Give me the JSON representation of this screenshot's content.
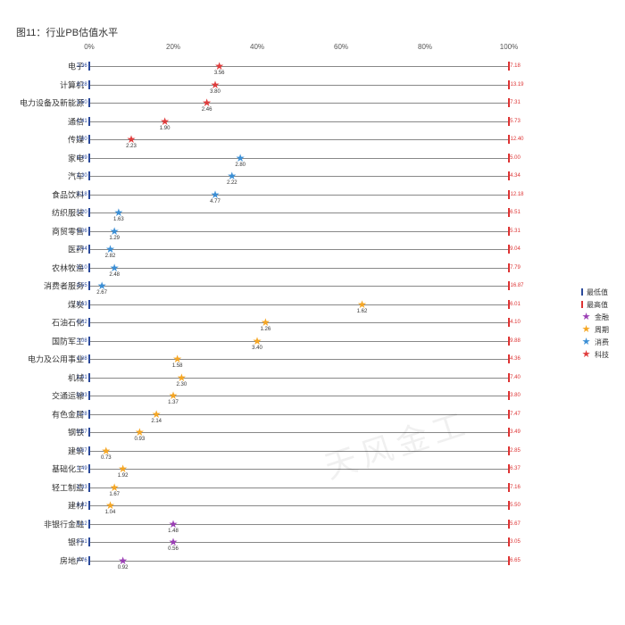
{
  "title": "图11：行业PB估值水平",
  "watermark": "天风金工",
  "xaxis": {
    "ticks": [
      0,
      20,
      40,
      60,
      80,
      100
    ],
    "suffix": "%"
  },
  "colors": {
    "min_tick": "#2b4a9b",
    "max_tick": "#d33",
    "grid": "#888888",
    "categories": {
      "金融": "#9b3fb5",
      "周期": "#f5a623",
      "消费": "#3b8fd6",
      "科技": "#e03c3c"
    }
  },
  "legend": [
    {
      "type": "tick",
      "color": "#2b4a9b",
      "label": "最低值"
    },
    {
      "type": "tick",
      "color": "#d33",
      "label": "最高值"
    },
    {
      "type": "star",
      "cat": "金融",
      "label": "金融"
    },
    {
      "type": "star",
      "cat": "周期",
      "label": "周期"
    },
    {
      "type": "star",
      "cat": "消费",
      "label": "消费"
    },
    {
      "type": "star",
      "cat": "科技",
      "label": "科技"
    }
  ],
  "rows": [
    {
      "label": "电子",
      "min": 2.36,
      "max": 7.18,
      "cat": "科技",
      "pct": 31,
      "val": 3.56
    },
    {
      "label": "计算机",
      "min": 2.28,
      "max": 13.19,
      "cat": "科技",
      "pct": 30,
      "val": 3.8
    },
    {
      "label": "电力设备及新能源",
      "min": 1.5,
      "max": 7.31,
      "cat": "科技",
      "pct": 28,
      "val": 2.46
    },
    {
      "label": "通信",
      "min": 1.41,
      "max": 5.73,
      "cat": "科技",
      "pct": 18,
      "val": 1.9
    },
    {
      "label": "传媒",
      "min": 1.6,
      "max": 12.4,
      "cat": "科技",
      "pct": 10,
      "val": 2.23
    },
    {
      "label": "家电",
      "min": 1.49,
      "max": 5.0,
      "cat": "消费",
      "pct": 36,
      "val": 2.8
    },
    {
      "label": "汽车",
      "min": 1.3,
      "max": 4.34,
      "cat": "消费",
      "pct": 34,
      "val": 2.22
    },
    {
      "label": "食品饮料",
      "min": 3.18,
      "max": 12.18,
      "cat": "消费",
      "pct": 30,
      "val": 4.77
    },
    {
      "label": "纺织服装",
      "min": 1.2,
      "max": 6.51,
      "cat": "消费",
      "pct": 7,
      "val": 1.63
    },
    {
      "label": "商贸零售",
      "min": 1.06,
      "max": 5.31,
      "cat": "消费",
      "pct": 6,
      "val": 1.29
    },
    {
      "label": "医药",
      "min": 2.44,
      "max": 9.04,
      "cat": "消费",
      "pct": 5,
      "val": 2.82
    },
    {
      "label": "农林牧渔",
      "min": 2.1,
      "max": 7.79,
      "cat": "消费",
      "pct": 6,
      "val": 2.48
    },
    {
      "label": "消费者服务",
      "min": 2.55,
      "max": 16.87,
      "cat": "消费",
      "pct": 3,
      "val": 2.67
    },
    {
      "label": "煤炭",
      "min": 0.63,
      "max": 6.01,
      "cat": "周期",
      "pct": 65,
      "val": 1.62
    },
    {
      "label": "石油石化",
      "min": 0.82,
      "max": 4.1,
      "cat": "周期",
      "pct": 42,
      "val": 1.26
    },
    {
      "label": "国防军工",
      "min": 2.08,
      "max": 9.88,
      "cat": "周期",
      "pct": 40,
      "val": 3.4
    },
    {
      "label": "电力及公用事业",
      "min": 1.08,
      "max": 4.36,
      "cat": "周期",
      "pct": 21,
      "val": 1.58
    },
    {
      "label": "机械",
      "min": 1.41,
      "max": 7.4,
      "cat": "周期",
      "pct": 22,
      "val": 2.3
    },
    {
      "label": "交通运输",
      "min": 0.93,
      "max": 3.8,
      "cat": "周期",
      "pct": 20,
      "val": 1.37
    },
    {
      "label": "有色金属",
      "min": 1.28,
      "max": 7.47,
      "cat": "周期",
      "pct": 16,
      "val": 2.14
    },
    {
      "label": "钢铁",
      "min": 0.57,
      "max": 3.49,
      "cat": "周期",
      "pct": 12,
      "val": 0.93
    },
    {
      "label": "建筑",
      "min": 0.67,
      "max": 2.85,
      "cat": "周期",
      "pct": 4,
      "val": 0.73
    },
    {
      "label": "基础化工",
      "min": 1.49,
      "max": 6.37,
      "cat": "周期",
      "pct": 8,
      "val": 1.92
    },
    {
      "label": "轻工制造",
      "min": 1.33,
      "max": 7.16,
      "cat": "周期",
      "pct": 6,
      "val": 1.67
    },
    {
      "label": "建材",
      "min": 0.82,
      "max": 5.5,
      "cat": "周期",
      "pct": 5,
      "val": 1.04
    },
    {
      "label": "非银行金融",
      "min": 1.12,
      "max": 5.67,
      "cat": "金融",
      "pct": 20,
      "val": 1.48
    },
    {
      "label": "银行",
      "min": 0.51,
      "max": 3.05,
      "cat": "金融",
      "pct": 20,
      "val": 0.56
    },
    {
      "label": "房地产",
      "min": 0.76,
      "max": 6.65,
      "cat": "金融",
      "pct": 8,
      "val": 0.92
    }
  ]
}
